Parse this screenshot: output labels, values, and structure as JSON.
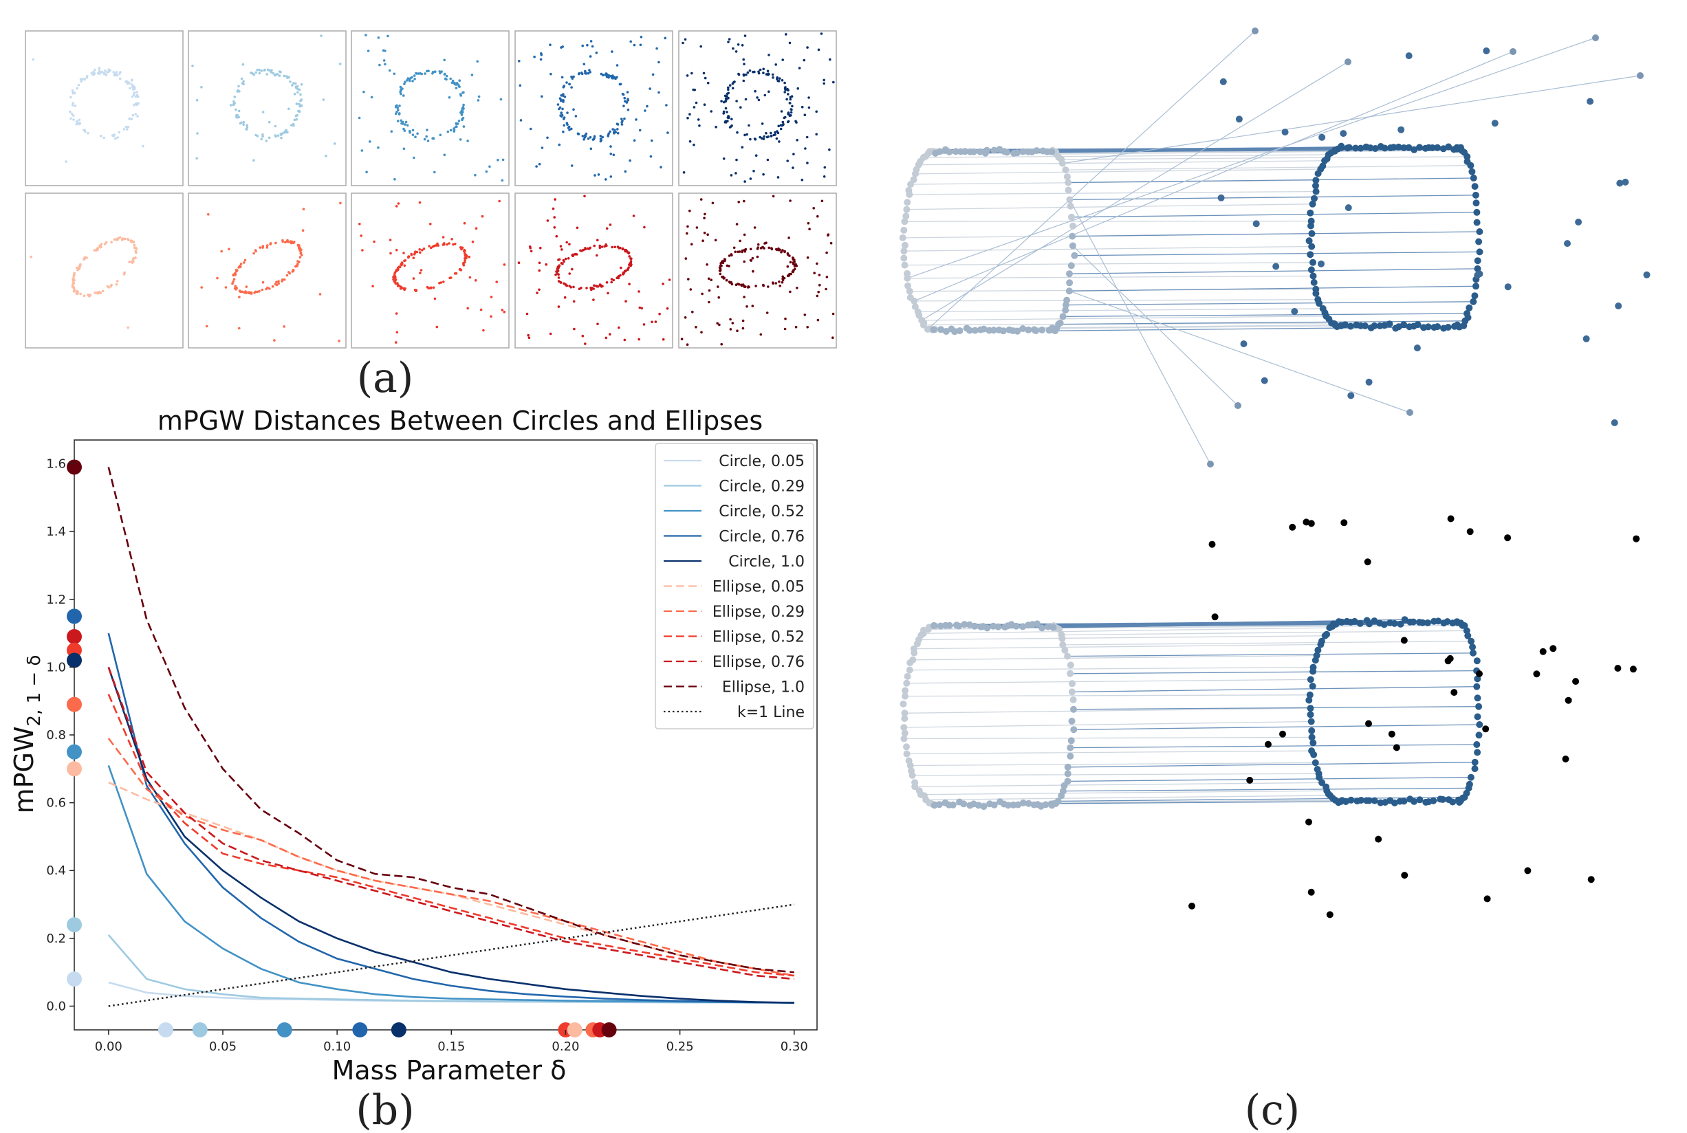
{
  "panels": {
    "a_caption": "(a)",
    "b_caption": "(b)",
    "c_caption": "(c)"
  },
  "colors": {
    "circle": [
      "#c6dbef",
      "#9ecae1",
      "#4292c6",
      "#2166ac",
      "#08306b"
    ],
    "ellipse": [
      "#fcbba1",
      "#fb6a4a",
      "#ef3b2c",
      "#cb181d",
      "#67000d"
    ],
    "kline": "#222222",
    "panel_c_source": "#c3cbd5",
    "panel_c_target": "#2b5d8c",
    "panel_c_outlier": "#000000"
  },
  "chart_data": {
    "type": "line",
    "title": "mPGW Distances Between Circles and Ellipses",
    "xlabel": "Mass Parameter δ",
    "ylabel": "mPGW",
    "ylabel_sub": "2, 1 − δ",
    "xlim": [
      -0.015,
      0.31
    ],
    "ylim": [
      -0.07,
      1.67
    ],
    "grid": false,
    "legend_position": "top-right",
    "xticks": [
      "0.00",
      "0.05",
      "0.10",
      "0.15",
      "0.20",
      "0.25",
      "0.30"
    ],
    "yticks": [
      "0.0",
      "0.2",
      "0.4",
      "0.6",
      "0.8",
      "1.0",
      "1.2",
      "1.4",
      "1.6"
    ],
    "x": [
      0.0,
      0.0167,
      0.0333,
      0.05,
      0.0667,
      0.0833,
      0.1,
      0.1167,
      0.1333,
      0.15,
      0.1667,
      0.1833,
      0.2,
      0.2167,
      0.2333,
      0.25,
      0.2667,
      0.2833,
      0.3
    ],
    "series": [
      {
        "name": "Circle,  0.05",
        "style": "solid",
        "color_index": 0,
        "values": [
          0.07,
          0.04,
          0.03,
          0.025,
          0.02,
          0.02,
          0.018,
          0.016,
          0.015,
          0.014,
          0.013,
          0.013,
          0.012,
          0.012,
          0.011,
          0.011,
          0.011,
          0.01,
          0.01
        ]
      },
      {
        "name": "Circle,  0.29",
        "style": "solid",
        "color_index": 1,
        "values": [
          0.21,
          0.08,
          0.05,
          0.035,
          0.025,
          0.022,
          0.02,
          0.018,
          0.016,
          0.015,
          0.014,
          0.013,
          0.013,
          0.012,
          0.012,
          0.011,
          0.011,
          0.011,
          0.01
        ]
      },
      {
        "name": "Circle,  0.52",
        "style": "solid",
        "color_index": 2,
        "values": [
          0.71,
          0.39,
          0.25,
          0.17,
          0.11,
          0.07,
          0.05,
          0.035,
          0.027,
          0.022,
          0.02,
          0.018,
          0.016,
          0.015,
          0.014,
          0.013,
          0.012,
          0.011,
          0.01
        ]
      },
      {
        "name": "Circle,  0.76",
        "style": "solid",
        "color_index": 3,
        "values": [
          1.1,
          0.65,
          0.48,
          0.35,
          0.26,
          0.19,
          0.14,
          0.11,
          0.08,
          0.06,
          0.045,
          0.035,
          0.028,
          0.022,
          0.018,
          0.015,
          0.013,
          0.011,
          0.01
        ]
      },
      {
        "name": "Circle,  1.0",
        "style": "solid",
        "color_index": 4,
        "values": [
          1.0,
          0.67,
          0.5,
          0.4,
          0.32,
          0.25,
          0.2,
          0.16,
          0.13,
          0.1,
          0.08,
          0.065,
          0.05,
          0.04,
          0.03,
          0.022,
          0.016,
          0.012,
          0.01
        ]
      },
      {
        "name": "Ellipse, 0.05",
        "style": "dashed",
        "color_index": 0,
        "values": [
          0.66,
          0.61,
          0.57,
          0.53,
          0.49,
          0.44,
          0.4,
          0.37,
          0.35,
          0.33,
          0.3,
          0.27,
          0.24,
          0.21,
          0.18,
          0.15,
          0.13,
          0.11,
          0.09
        ]
      },
      {
        "name": "Ellipse, 0.29",
        "style": "dashed",
        "color_index": 1,
        "values": [
          0.79,
          0.64,
          0.56,
          0.52,
          0.49,
          0.44,
          0.4,
          0.37,
          0.35,
          0.33,
          0.31,
          0.28,
          0.25,
          0.22,
          0.19,
          0.16,
          0.13,
          0.11,
          0.09
        ]
      },
      {
        "name": "Ellipse, 0.52",
        "style": "dashed",
        "color_index": 2,
        "values": [
          0.92,
          0.66,
          0.54,
          0.45,
          0.42,
          0.4,
          0.38,
          0.35,
          0.32,
          0.29,
          0.26,
          0.23,
          0.2,
          0.18,
          0.16,
          0.14,
          0.12,
          0.1,
          0.09
        ]
      },
      {
        "name": "Ellipse, 0.76",
        "style": "dashed",
        "color_index": 3,
        "values": [
          1.0,
          0.69,
          0.57,
          0.48,
          0.43,
          0.4,
          0.37,
          0.34,
          0.31,
          0.28,
          0.25,
          0.22,
          0.19,
          0.17,
          0.15,
          0.13,
          0.11,
          0.09,
          0.08
        ]
      },
      {
        "name": "Ellipse, 1.0",
        "style": "dashed",
        "color_index": 4,
        "values": [
          1.59,
          1.14,
          0.88,
          0.7,
          0.58,
          0.51,
          0.43,
          0.39,
          0.38,
          0.35,
          0.33,
          0.29,
          0.25,
          0.21,
          0.18,
          0.15,
          0.13,
          0.11,
          0.1
        ]
      },
      {
        "name": "k=1 Line",
        "style": "dotted",
        "color_index": -1,
        "values": [
          0.0,
          0.0167,
          0.0333,
          0.05,
          0.0667,
          0.0833,
          0.1,
          0.1167,
          0.1333,
          0.15,
          0.1667,
          0.1833,
          0.2,
          0.2167,
          0.2333,
          0.25,
          0.2667,
          0.2833,
          0.3
        ]
      }
    ],
    "y_axis_markers": [
      {
        "series": "Ellipse, 1.0",
        "value": 1.59
      },
      {
        "series": "Circle,  0.76",
        "value": 1.15
      },
      {
        "series": "Ellipse, 0.76",
        "value": 1.09
      },
      {
        "series": "Ellipse, 0.52",
        "value": 1.05
      },
      {
        "series": "Circle,  1.0",
        "value": 1.02
      },
      {
        "series": "Ellipse, 0.29",
        "value": 0.89
      },
      {
        "series": "Circle,  0.52",
        "value": 0.75
      },
      {
        "series": "Ellipse, 0.05",
        "value": 0.7
      },
      {
        "series": "Circle,  0.29",
        "value": 0.24
      },
      {
        "series": "Circle,  0.05",
        "value": 0.08
      }
    ],
    "x_axis_markers": [
      {
        "series": "Circle,  0.05",
        "value": 0.025
      },
      {
        "series": "Circle,  0.29",
        "value": 0.04
      },
      {
        "series": "Circle,  0.52",
        "value": 0.077
      },
      {
        "series": "Circle,  0.76",
        "value": 0.11
      },
      {
        "series": "Circle,  1.0",
        "value": 0.127
      },
      {
        "series": "Ellipse, 0.52",
        "value": 0.2
      },
      {
        "series": "Ellipse, 0.05",
        "value": 0.204
      },
      {
        "series": "Ellipse, 0.29",
        "value": 0.212
      },
      {
        "series": "Ellipse, 0.76",
        "value": 0.215
      },
      {
        "series": "Ellipse, 1.0",
        "value": 0.219
      }
    ]
  }
}
